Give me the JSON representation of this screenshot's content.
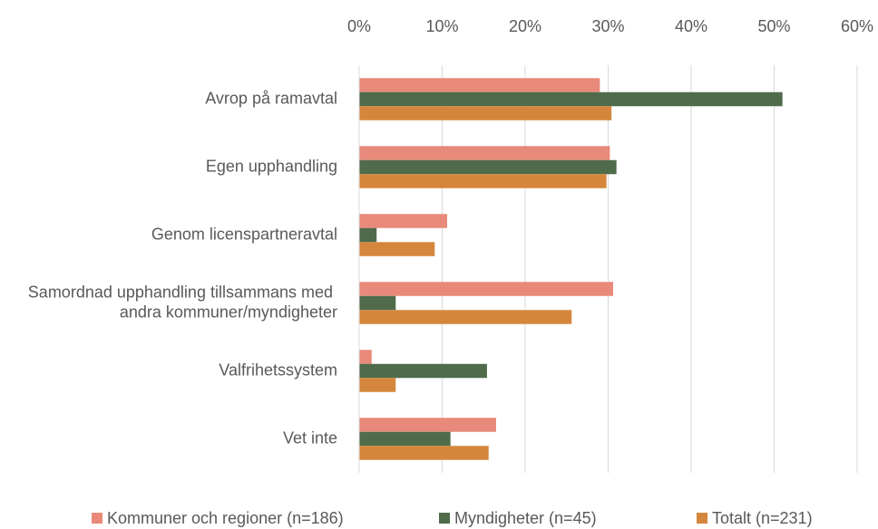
{
  "chart_data": {
    "type": "hbar",
    "categories": [
      "Avrop på ramavtal",
      "Egen upphandling",
      "Genom licenspartneravtal",
      "Samordnad upphandling tillsammans med andra kommuner/myndigheter",
      "Valfrihetssystem",
      "Vet inte"
    ],
    "series": [
      {
        "name": "Kommuner och regioner (n=186)",
        "color": "#e8897a",
        "values": [
          29,
          30.2,
          10.6,
          30.6,
          1.5,
          16.5
        ]
      },
      {
        "name": "Myndigheter (n=45)",
        "color": "#4f6b4a",
        "values": [
          51,
          31,
          2.1,
          4.4,
          15.4,
          11
        ]
      },
      {
        "name": "Totalt (n=231)",
        "color": "#d4873c",
        "values": [
          30.4,
          29.8,
          9.1,
          25.6,
          4.4,
          15.6
        ]
      }
    ],
    "xlim": [
      0,
      60
    ],
    "xticks": [
      {
        "value": 0,
        "label": "0%"
      },
      {
        "value": 10,
        "label": "10%"
      },
      {
        "value": 20,
        "label": "20%"
      },
      {
        "value": 30,
        "label": "30%"
      },
      {
        "value": 40,
        "label": "40%"
      },
      {
        "value": 50,
        "label": "50%"
      },
      {
        "value": 60,
        "label": "60%"
      }
    ],
    "grid": true,
    "legend": "bottom"
  }
}
